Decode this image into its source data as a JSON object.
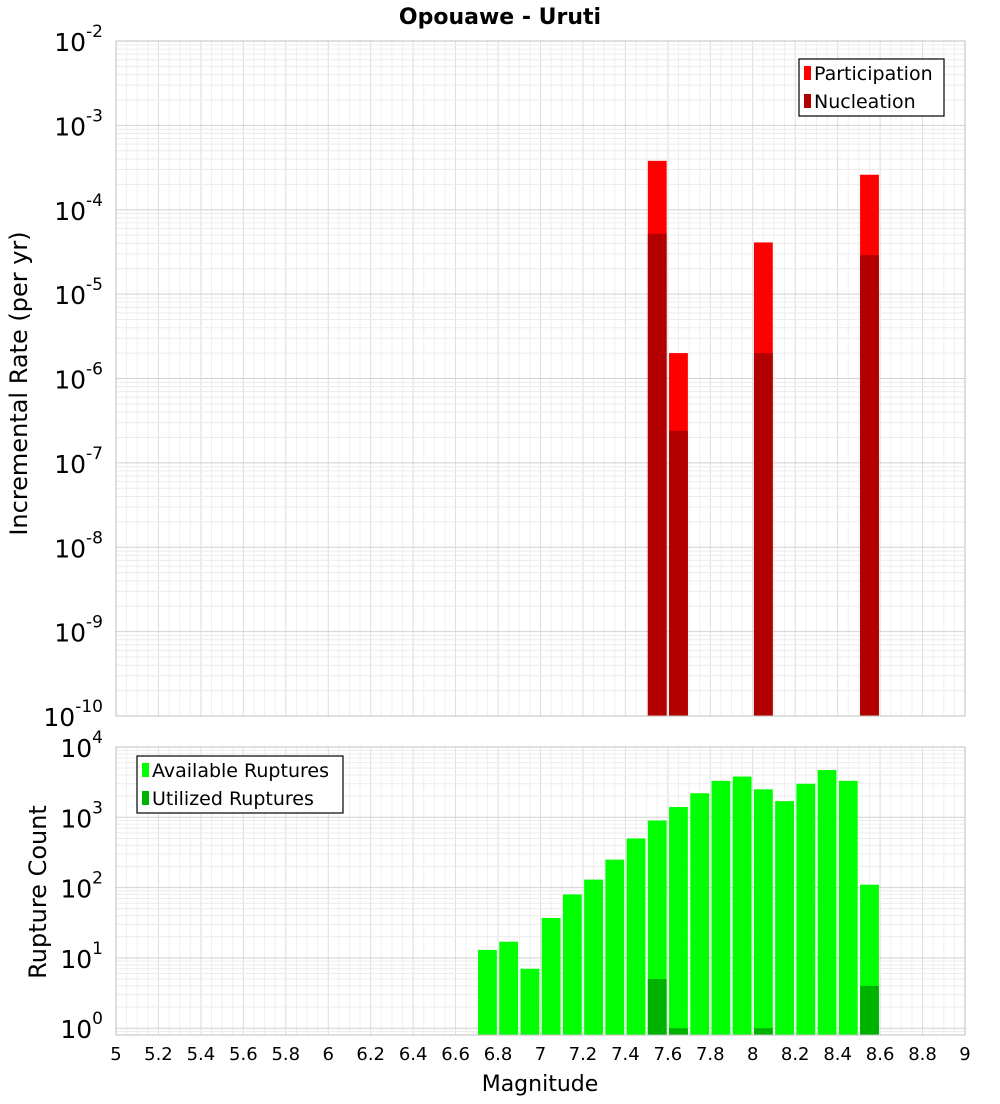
{
  "chart_data": [
    {
      "type": "bar",
      "title": "Opouawe - Uruti",
      "ylabel": "Incremental Rate (per yr)",
      "yscale": "log",
      "ylim": [
        1e-10,
        0.01
      ],
      "xlim": [
        5,
        9
      ],
      "y_tick_labels": [
        {
          "base": "10",
          "exp": "-10"
        },
        {
          "base": "10",
          "exp": "-9"
        },
        {
          "base": "10",
          "exp": "-8"
        },
        {
          "base": "10",
          "exp": "-7"
        },
        {
          "base": "10",
          "exp": "-6"
        },
        {
          "base": "10",
          "exp": "-5"
        },
        {
          "base": "10",
          "exp": "-4"
        },
        {
          "base": "10",
          "exp": "-3"
        },
        {
          "base": "10",
          "exp": "-2"
        }
      ],
      "grid": true,
      "legend_position": "top-right",
      "series": [
        {
          "name": "Participation",
          "color": "#ff0000",
          "x": [
            7.55,
            7.65,
            8.05,
            8.55
          ],
          "values": [
            0.00038,
            2e-06,
            4.1e-05,
            0.00026
          ]
        },
        {
          "name": "Nucleation",
          "color": "#b20000",
          "x": [
            7.55,
            7.65,
            8.05,
            8.55
          ],
          "values": [
            5.2e-05,
            2.4e-07,
            2e-06,
            2.9e-05
          ]
        }
      ]
    },
    {
      "type": "bar",
      "ylabel": "Rupture Count",
      "xlabel": "Magnitude",
      "yscale": "log",
      "ylim": [
        0.8,
        10000
      ],
      "xlim": [
        5,
        9
      ],
      "y_tick_labels": [
        {
          "base": "10",
          "exp": "0"
        },
        {
          "base": "10",
          "exp": "1"
        },
        {
          "base": "10",
          "exp": "2"
        },
        {
          "base": "10",
          "exp": "3"
        },
        {
          "base": "10",
          "exp": "4"
        }
      ],
      "x_tick_labels": [
        "5",
        "5.2",
        "5.4",
        "5.6",
        "5.8",
        "6",
        "6.2",
        "6.4",
        "6.6",
        "6.8",
        "7",
        "7.2",
        "7.4",
        "7.6",
        "7.8",
        "8",
        "8.2",
        "8.4",
        "8.6",
        "8.8",
        "9"
      ],
      "grid": true,
      "legend_position": "top-left",
      "series": [
        {
          "name": "Available Ruptures",
          "color": "#00ff00",
          "x": [
            6.75,
            6.85,
            6.95,
            7.05,
            7.15,
            7.25,
            7.35,
            7.45,
            7.55,
            7.65,
            7.75,
            7.85,
            7.95,
            8.05,
            8.15,
            8.25,
            8.35,
            8.45,
            8.55
          ],
          "values": [
            13,
            17,
            7,
            37,
            80,
            130,
            250,
            500,
            900,
            1400,
            2200,
            3300,
            3800,
            2500,
            1700,
            3000,
            4700,
            3300,
            110
          ]
        },
        {
          "name": "Utilized Ruptures",
          "color": "#00b200",
          "x": [
            7.55,
            7.65,
            8.05,
            8.55
          ],
          "values": [
            5,
            1,
            1,
            4
          ]
        }
      ]
    }
  ]
}
